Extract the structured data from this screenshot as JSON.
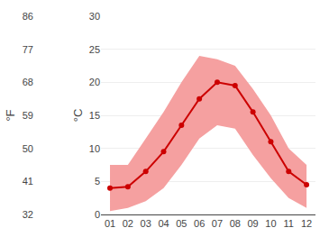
{
  "chart_data": {
    "type": "line",
    "x": [
      1,
      2,
      3,
      4,
      5,
      6,
      7,
      8,
      9,
      10,
      11,
      12
    ],
    "xlim": [
      0.5,
      12.5
    ],
    "xticks": [
      {
        "value": 1,
        "label": "01"
      },
      {
        "value": 2,
        "label": "02"
      },
      {
        "value": 3,
        "label": "03"
      },
      {
        "value": 4,
        "label": "04"
      },
      {
        "value": 5,
        "label": "05"
      },
      {
        "value": 6,
        "label": "06"
      },
      {
        "value": 7,
        "label": "07"
      },
      {
        "value": 8,
        "label": "08"
      },
      {
        "value": 9,
        "label": "09"
      },
      {
        "value": 10,
        "label": "10"
      },
      {
        "value": 11,
        "label": "11"
      },
      {
        "value": 12,
        "label": "12"
      }
    ],
    "ylabel": "°C",
    "ylim": [
      0,
      30
    ],
    "yticks": [
      0,
      5,
      10,
      15,
      20,
      25,
      30
    ],
    "y2label": "°F",
    "y2lim": [
      32,
      86
    ],
    "y2ticks": [
      32,
      41,
      50,
      59,
      68,
      77,
      86
    ],
    "grid": true,
    "series": [
      {
        "values": [
          4.0,
          4.2,
          6.5,
          9.5,
          13.5,
          17.5,
          20.0,
          19.5,
          15.5,
          11.0,
          6.5,
          4.5
        ],
        "color": "#cc0000",
        "marker": "circle",
        "line_style": "solid"
      }
    ],
    "band": {
      "low": [
        0.5,
        1.0,
        2.0,
        4.0,
        7.5,
        11.5,
        13.5,
        13.0,
        9.0,
        5.5,
        2.5,
        1.0
      ],
      "high": [
        7.5,
        7.5,
        11.5,
        15.5,
        20.0,
        24.0,
        23.5,
        22.5,
        19.0,
        15.0,
        10.0,
        7.5
      ],
      "color": "#f5a0a0"
    }
  }
}
